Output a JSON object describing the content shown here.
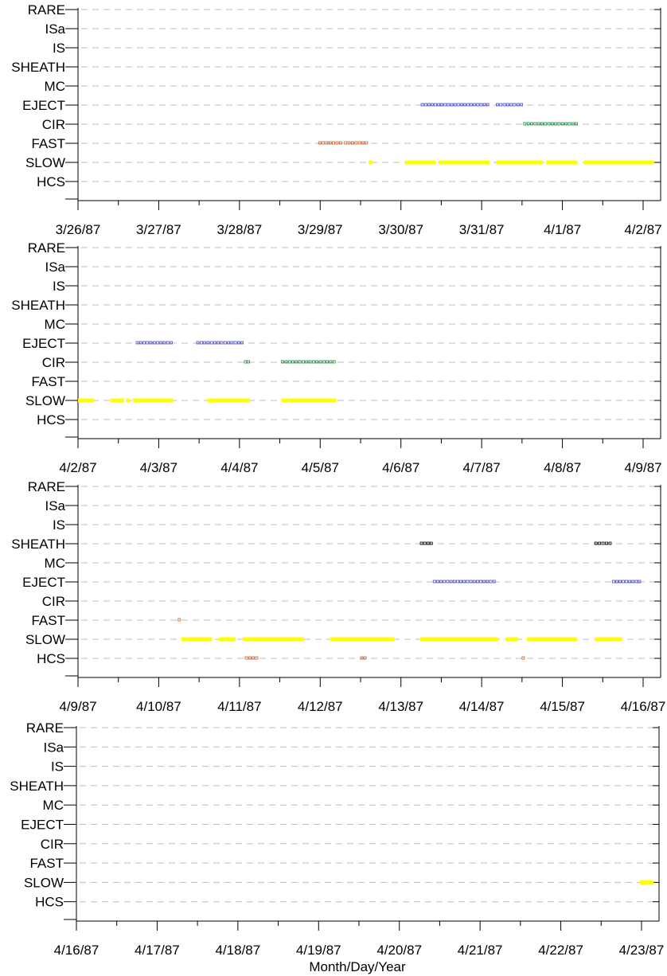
{
  "colors": {
    "SLOW": "#ffff00",
    "FAST": "#c0632d",
    "HCS": "#c0632d",
    "EJECT": "#4b4bd1",
    "CIR": "#1a8a3a",
    "SHEATH": "#000000",
    "grid": "#bdbdbd",
    "axis": "#000000"
  },
  "chart_data": [
    {
      "type": "timeline",
      "categories": [
        "RARE",
        "ISa",
        "IS",
        "SHEATH",
        "MC",
        "EJECT",
        "CIR",
        "FAST",
        "SLOW",
        "HCS"
      ],
      "xlim": [
        "3/26/87",
        "4/2/87"
      ],
      "tick_labels": [
        "3/26/87",
        "3/27/87",
        "3/28/87",
        "3/29/87",
        "3/30/87",
        "3/31/87",
        "4/1/87",
        "4/2/87"
      ],
      "grid": true,
      "intervals": [
        {
          "category": "EJECT",
          "start_day": 4.25,
          "end_day": 5.1
        },
        {
          "category": "EJECT",
          "start_day": 5.18,
          "end_day": 5.52
        },
        {
          "category": "CIR",
          "start_day": 5.52,
          "end_day": 6.2
        },
        {
          "category": "FAST",
          "start_day": 2.98,
          "end_day": 3.28
        },
        {
          "category": "FAST",
          "start_day": 3.3,
          "end_day": 3.6
        },
        {
          "category": "SLOW",
          "start_day": 3.6,
          "end_day": 3.65
        },
        {
          "category": "SLOW",
          "start_day": 4.05,
          "end_day": 4.43
        },
        {
          "category": "SLOW",
          "start_day": 4.47,
          "end_day": 5.1
        },
        {
          "category": "SLOW",
          "start_day": 5.18,
          "end_day": 5.76
        },
        {
          "category": "SLOW",
          "start_day": 5.8,
          "end_day": 6.18
        },
        {
          "category": "SLOW",
          "start_day": 6.27,
          "end_day": 7.13
        }
      ]
    },
    {
      "type": "timeline",
      "categories": [
        "RARE",
        "ISa",
        "IS",
        "SHEATH",
        "MC",
        "EJECT",
        "CIR",
        "FAST",
        "SLOW",
        "HCS"
      ],
      "xlim": [
        "4/2/87",
        "4/9/87"
      ],
      "tick_labels": [
        "4/2/87",
        "4/3/87",
        "4/4/87",
        "4/5/87",
        "4/6/87",
        "4/7/87",
        "4/8/87",
        "4/9/87"
      ],
      "grid": true,
      "intervals": [
        {
          "category": "EJECT",
          "start_day": 0.72,
          "end_day": 1.18
        },
        {
          "category": "EJECT",
          "start_day": 1.47,
          "end_day": 2.06
        },
        {
          "category": "CIR",
          "start_day": 2.06,
          "end_day": 2.13
        },
        {
          "category": "CIR",
          "start_day": 2.52,
          "end_day": 3.2
        },
        {
          "category": "SLOW",
          "start_day": 0.0,
          "end_day": 0.2
        },
        {
          "category": "SLOW",
          "start_day": 0.4,
          "end_day": 0.57
        },
        {
          "category": "SLOW",
          "start_day": 0.6,
          "end_day": 0.64
        },
        {
          "category": "SLOW",
          "start_day": 0.68,
          "end_day": 1.18
        },
        {
          "category": "SLOW",
          "start_day": 1.6,
          "end_day": 2.13
        },
        {
          "category": "SLOW",
          "start_day": 2.52,
          "end_day": 3.2
        }
      ]
    },
    {
      "type": "timeline",
      "categories": [
        "RARE",
        "ISa",
        "IS",
        "SHEATH",
        "MC",
        "EJECT",
        "CIR",
        "FAST",
        "SLOW",
        "HCS"
      ],
      "xlim": [
        "4/9/87",
        "4/16/87"
      ],
      "tick_labels": [
        "4/9/87",
        "4/10/87",
        "4/11/87",
        "4/12/87",
        "4/13/87",
        "4/14/87",
        "4/15/87",
        "4/16/87"
      ],
      "grid": true,
      "intervals": [
        {
          "category": "SHEATH",
          "start_day": 4.24,
          "end_day": 4.4
        },
        {
          "category": "SHEATH",
          "start_day": 6.4,
          "end_day": 6.62
        },
        {
          "category": "EJECT",
          "start_day": 4.4,
          "end_day": 5.18
        },
        {
          "category": "EJECT",
          "start_day": 6.62,
          "end_day": 6.98
        },
        {
          "category": "FAST",
          "start_day": 1.24,
          "end_day": 1.28
        },
        {
          "category": "SLOW",
          "start_day": 1.28,
          "end_day": 1.66
        },
        {
          "category": "SLOW",
          "start_day": 1.74,
          "end_day": 1.95
        },
        {
          "category": "SLOW",
          "start_day": 2.04,
          "end_day": 2.8
        },
        {
          "category": "SLOW",
          "start_day": 3.12,
          "end_day": 3.92
        },
        {
          "category": "SLOW",
          "start_day": 4.24,
          "end_day": 5.2
        },
        {
          "category": "SLOW",
          "start_day": 5.3,
          "end_day": 5.45
        },
        {
          "category": "SLOW",
          "start_day": 5.56,
          "end_day": 6.18
        },
        {
          "category": "SLOW",
          "start_day": 6.4,
          "end_day": 6.74
        },
        {
          "category": "HCS",
          "start_day": 2.07,
          "end_day": 2.24
        },
        {
          "category": "HCS",
          "start_day": 3.5,
          "end_day": 3.58
        },
        {
          "category": "HCS",
          "start_day": 5.5,
          "end_day": 5.56
        }
      ]
    },
    {
      "type": "timeline",
      "categories": [
        "RARE",
        "ISa",
        "IS",
        "SHEATH",
        "MC",
        "EJECT",
        "CIR",
        "FAST",
        "SLOW",
        "HCS"
      ],
      "xlim": [
        "4/16/87",
        "4/23/87"
      ],
      "tick_labels": [
        "4/16/87",
        "4/17/87",
        "4/18/87",
        "4/19/87",
        "4/20/87",
        "4/21/87",
        "4/22/87",
        "4/23/87"
      ],
      "xlabel": "Month/Day/Year",
      "grid": true,
      "intervals": [
        {
          "category": "SLOW",
          "start_day": 6.98,
          "end_day": 7.15
        }
      ]
    }
  ]
}
